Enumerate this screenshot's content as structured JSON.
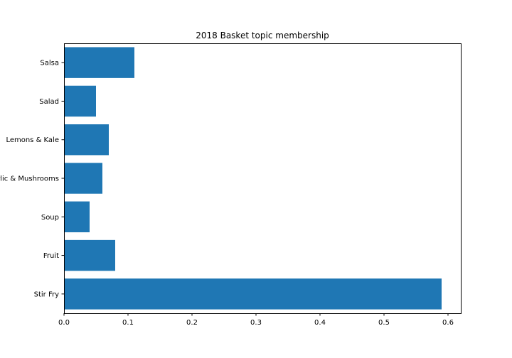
{
  "chart_data": {
    "type": "bar",
    "orientation": "horizontal",
    "title": "2018 Basket topic membership",
    "xlabel": "",
    "ylabel": "",
    "categories": [
      "Stir Fry",
      "Fruit",
      "Soup",
      "Garlic & Mushrooms",
      "Lemons & Kale",
      "Salad",
      "Salsa"
    ],
    "values": [
      0.59,
      0.08,
      0.04,
      0.06,
      0.07,
      0.05,
      0.11
    ],
    "xlim": [
      0,
      0.62
    ],
    "xticks": [
      0.0,
      0.1,
      0.2,
      0.3,
      0.4,
      0.5,
      0.6
    ],
    "xtick_labels": [
      "0.0",
      "0.1",
      "0.2",
      "0.3",
      "0.4",
      "0.5",
      "0.6"
    ],
    "grid": false,
    "legend": "none",
    "bar_color": "#1f77b4"
  }
}
